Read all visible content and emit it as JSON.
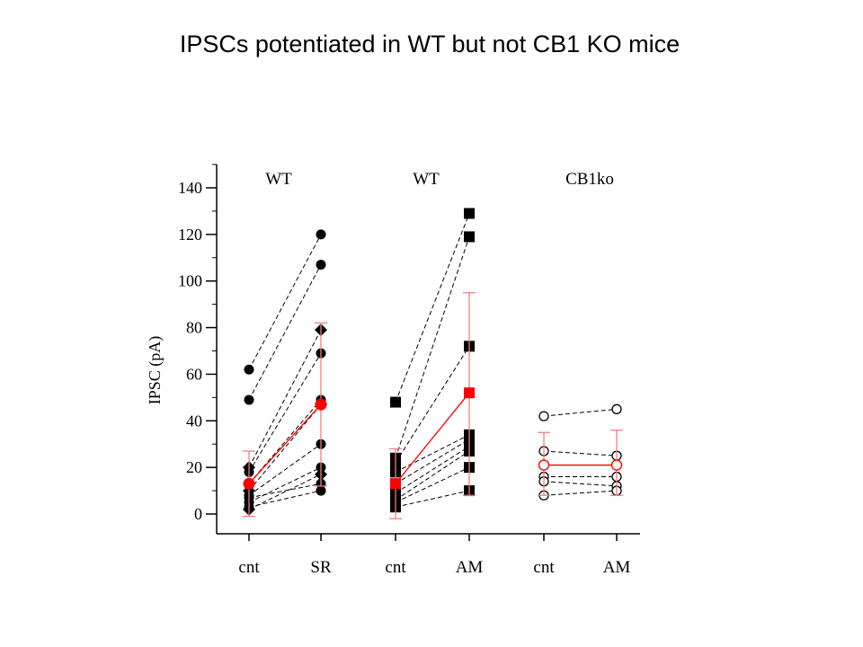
{
  "slide_title": "IPSCs potentiated in WT but not CB1 KO mice",
  "chart_data": {
    "type": "scatter",
    "ylabel": "IPSC (pA)",
    "ylim": [
      0,
      140
    ],
    "yticks": [
      0,
      20,
      40,
      60,
      80,
      100,
      120,
      140
    ],
    "panels": [
      {
        "label": "WT",
        "categories": [
          "cnt",
          "SR"
        ],
        "marker": "circle-diamond-filled",
        "pairs": [
          [
            62,
            120
          ],
          [
            49,
            107
          ],
          [
            20,
            79
          ],
          [
            18,
            69
          ],
          [
            13,
            49
          ],
          [
            10,
            47
          ],
          [
            8,
            30
          ],
          [
            5,
            20
          ],
          [
            2,
            17
          ],
          [
            7,
            13
          ],
          [
            3,
            10
          ]
        ],
        "mean": [
          13,
          47
        ],
        "error": [
          [
            -1,
            27
          ],
          [
            12,
            82
          ]
        ]
      },
      {
        "label": "WT",
        "categories": [
          "cnt",
          "AM"
        ],
        "marker": "square-filled",
        "pairs": [
          [
            48,
            129
          ],
          [
            24,
            119
          ],
          [
            22,
            72
          ],
          [
            18,
            34
          ],
          [
            13,
            32
          ],
          [
            9,
            29
          ],
          [
            6,
            27
          ],
          [
            5,
            20
          ],
          [
            3,
            10
          ]
        ],
        "mean": [
          13,
          52
        ],
        "error": [
          [
            -2,
            28
          ],
          [
            8,
            95
          ]
        ]
      },
      {
        "label": "CB1ko",
        "categories": [
          "cnt",
          "AM"
        ],
        "marker": "circle-open",
        "pairs": [
          [
            42,
            45
          ],
          [
            27,
            25
          ],
          [
            16,
            16
          ],
          [
            14,
            12
          ],
          [
            8,
            10
          ]
        ],
        "mean": [
          21,
          21
        ],
        "error": [
          [
            8,
            35
          ],
          [
            8,
            36
          ]
        ]
      }
    ],
    "colors": {
      "individual": "#000000",
      "mean": "#ff0000",
      "error": "#f08080"
    },
    "grid": false
  }
}
